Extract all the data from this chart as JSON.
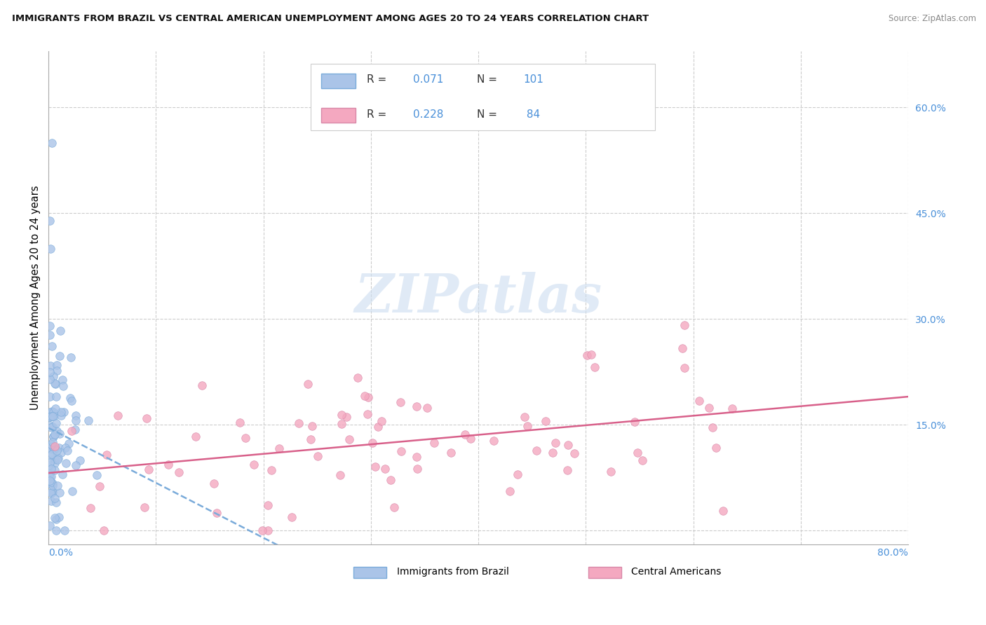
{
  "title": "IMMIGRANTS FROM BRAZIL VS CENTRAL AMERICAN UNEMPLOYMENT AMONG AGES 20 TO 24 YEARS CORRELATION CHART",
  "source": "Source: ZipAtlas.com",
  "ylabel": "Unemployment Among Ages 20 to 24 years",
  "color_blue": "#aac4e8",
  "color_pink": "#f4a8c0",
  "color_blue_dark": "#4a90d9",
  "color_pink_dark": "#e05878",
  "watermark": "ZIPatlas",
  "watermark_color": "#ddeeff",
  "xlim": [
    0.0,
    0.8
  ],
  "ylim": [
    -0.02,
    0.68
  ],
  "brazil_R": 0.071,
  "brazil_N": 101,
  "central_R": 0.228,
  "central_N": 84,
  "right_ytick_vals": [
    0.0,
    0.15,
    0.3,
    0.45,
    0.6
  ],
  "right_ytick_labels": [
    "",
    "15.0%",
    "30.0%",
    "45.0%",
    "60.0%"
  ],
  "xtick_vals": [
    0.0,
    0.1,
    0.2,
    0.3,
    0.4,
    0.5,
    0.6,
    0.7,
    0.8
  ],
  "figwidth": 14.06,
  "figheight": 8.92,
  "dpi": 100
}
